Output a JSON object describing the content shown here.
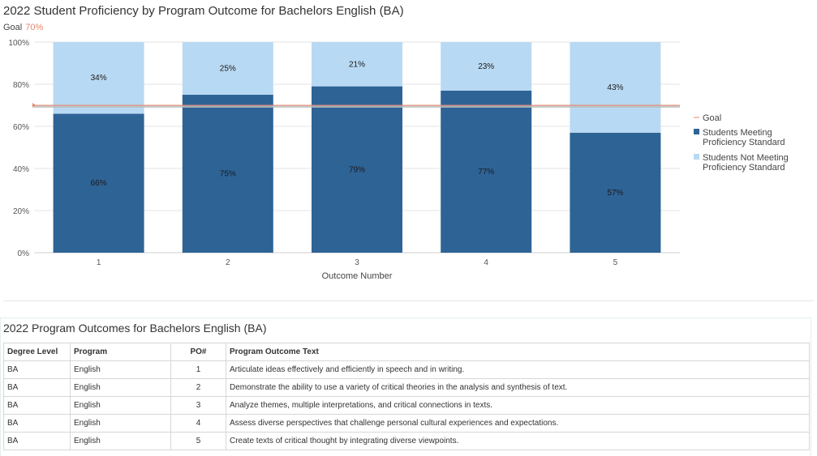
{
  "page": {
    "chart_title": "2022 Student Proficiency by Program Outcome for Bachelors English (BA)",
    "goal_caption": "Goal",
    "goal_caption_value": "70%"
  },
  "chart_data": {
    "type": "bar",
    "stacked": true,
    "title": "2022 Student Proficiency by Program Outcome for Bachelors English (BA)",
    "xlabel": "Outcome Number",
    "ylabel": "",
    "ylim": [
      0,
      100
    ],
    "yticks": [
      "0%",
      "20%",
      "40%",
      "60%",
      "80%",
      "100%"
    ],
    "categories": [
      "1",
      "2",
      "3",
      "4",
      "5"
    ],
    "goal": 70,
    "series": [
      {
        "name": "Students Meeting Proficiency Standard",
        "values": [
          66,
          75,
          79,
          77,
          57
        ],
        "labels": [
          "66%",
          "75%",
          "79%",
          "77%",
          "57%"
        ],
        "color": "#2e6396"
      },
      {
        "name": "Students Not Meeting Proficiency Standard",
        "values": [
          34,
          25,
          21,
          23,
          43
        ],
        "labels": [
          "34%",
          "25%",
          "21%",
          "23%",
          "43%"
        ],
        "color": "#b8d9f3"
      }
    ],
    "legend": {
      "placement": "right",
      "items": [
        {
          "lines": [
            "Goal"
          ],
          "color": "#e8866a",
          "kind": "line"
        },
        {
          "lines": [
            "Students Meeting",
            "Proficiency Standard"
          ],
          "color": "#2e6396",
          "kind": "square"
        },
        {
          "lines": [
            "Students Not Meeting",
            "Proficiency Standard"
          ],
          "color": "#b8d9f3",
          "kind": "square"
        }
      ]
    },
    "grid": true,
    "goal_color": "#e8866a"
  },
  "outcomes_table": {
    "title": "2022 Program Outcomes for Bachelors English (BA)",
    "headers": [
      "Degree Level",
      "Program",
      "PO#",
      "Program Outcome Text"
    ],
    "rows": [
      [
        "BA",
        "English",
        "1",
        "Articulate ideas effectively and efficiently in speech and in writing."
      ],
      [
        "BA",
        "English",
        "2",
        "Demonstrate the ability to use a variety of critical theories in the analysis and synthesis of text."
      ],
      [
        "BA",
        "English",
        "3",
        "Analyze themes, multiple interpretations, and critical connections in texts."
      ],
      [
        "BA",
        "English",
        "4",
        "Assess diverse perspectives that challenge personal cultural experiences and expectations."
      ],
      [
        "BA",
        "English",
        "5",
        "Create texts of critical thought by integrating diverse viewpoints."
      ]
    ]
  }
}
